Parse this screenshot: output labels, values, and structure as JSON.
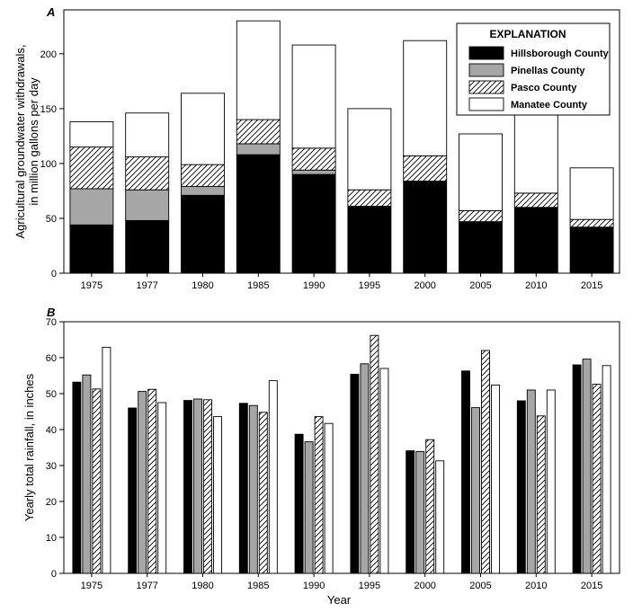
{
  "chart_data": [
    {
      "panel": "A",
      "type": "bar",
      "stacked": true,
      "categories": [
        "1975",
        "1977",
        "1980",
        "1985",
        "1990",
        "1995",
        "2000",
        "2005",
        "2010",
        "2015"
      ],
      "series": [
        {
          "name": "Hillsborough County",
          "values": [
            44,
            48,
            71,
            108,
            90,
            61,
            84,
            47,
            60,
            42
          ]
        },
        {
          "name": "Pinellas County",
          "values": [
            33,
            28,
            8,
            10,
            4,
            0,
            0,
            0,
            0,
            0
          ]
        },
        {
          "name": "Pasco County",
          "values": [
            38,
            30,
            20,
            22,
            20,
            15,
            23,
            10,
            13,
            7
          ]
        },
        {
          "name": "Manatee County",
          "values": [
            23,
            40,
            65,
            90,
            94,
            74,
            105,
            70,
            77,
            47
          ]
        }
      ],
      "xlabel": "",
      "ylabel": "Agricultural groundwater withdrawals, in million gallons per day",
      "ylim": [
        0,
        240
      ],
      "yticks": [
        0,
        50,
        100,
        150,
        200
      ],
      "grid": false,
      "legend": {
        "title": "EXPLANATION",
        "position": "top-right"
      }
    },
    {
      "panel": "B",
      "type": "bar",
      "categories": [
        "1975",
        "1977",
        "1980",
        "1985",
        "1990",
        "1995",
        "2000",
        "2005",
        "2010",
        "2015"
      ],
      "series": [
        {
          "name": "Hillsborough County",
          "values": [
            53.2,
            46.0,
            48.1,
            47.3,
            38.7,
            55.4,
            34.1,
            56.3,
            48.0,
            58.0
          ]
        },
        {
          "name": "Pinellas County",
          "values": [
            55.2,
            50.6,
            48.5,
            46.7,
            36.6,
            58.3,
            33.9,
            46.1,
            51.0,
            59.6
          ]
        },
        {
          "name": "Pasco County",
          "values": [
            51.3,
            51.2,
            48.3,
            44.8,
            43.6,
            66.2,
            37.2,
            62.0,
            43.8,
            52.6
          ]
        },
        {
          "name": "Manatee County",
          "values": [
            62.9,
            47.5,
            43.6,
            53.6,
            41.7,
            57.0,
            31.3,
            52.4,
            51.0,
            57.8
          ]
        }
      ],
      "xlabel": "Year",
      "ylabel": "Yearly total rainfall, in inches",
      "ylim": [
        0,
        70
      ],
      "yticks": [
        0,
        10,
        20,
        30,
        40,
        50,
        60,
        70
      ],
      "grid": false
    }
  ],
  "series_styles": [
    {
      "fill": "#000000",
      "pattern": "solid"
    },
    {
      "fill": "#a6a6a6",
      "pattern": "solid"
    },
    {
      "fill": "#ffffff",
      "pattern": "hatch"
    },
    {
      "fill": "#ffffff",
      "pattern": "solid"
    }
  ]
}
